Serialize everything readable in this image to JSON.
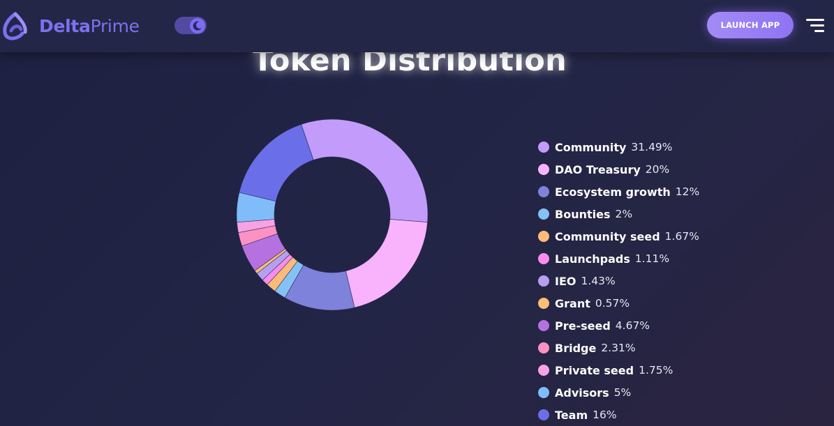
{
  "header": {
    "brand_bold": "Delta",
    "brand_light": "Prime",
    "launch_label": "LAUNCH APP"
  },
  "icons": {
    "logo": "deltaprime-logo-icon",
    "theme_toggle": "moon-icon",
    "menu": "menu-icon"
  },
  "colors": {
    "brand": "#7c72f0",
    "header_bg": "#242648",
    "page_bg": "#212341",
    "launch_button": "#9a80f4"
  },
  "chart_data": {
    "type": "pie",
    "title": "Token Distribution",
    "donut": true,
    "legend_position": "right",
    "categories": [
      "Community",
      "DAO Treasury",
      "Ecosystem growth",
      "Bounties",
      "Community seed",
      "Launchpads",
      "IEO",
      "Grant",
      "Pre-seed",
      "Bridge",
      "Private seed",
      "Advisors",
      "Team"
    ],
    "values": [
      31.49,
      20,
      12,
      2,
      1.67,
      1.11,
      1.43,
      0.57,
      4.67,
      2.31,
      1.75,
      5,
      16
    ],
    "labels": [
      "31.49%",
      "20%",
      "12%",
      "2%",
      "1.67%",
      "1.11%",
      "1.43%",
      "0.57%",
      "4.67%",
      "2.31%",
      "1.75%",
      "5%",
      "16%"
    ],
    "colors": [
      "#c39bfb",
      "#f8b3fc",
      "#7e82da",
      "#84c2f5",
      "#fdbb7a",
      "#f98ced",
      "#b5a0f0",
      "#ffbd7a",
      "#b671e0",
      "#fb92c3",
      "#f8a2e6",
      "#7fbcf9",
      "#6a6ee8"
    ]
  }
}
